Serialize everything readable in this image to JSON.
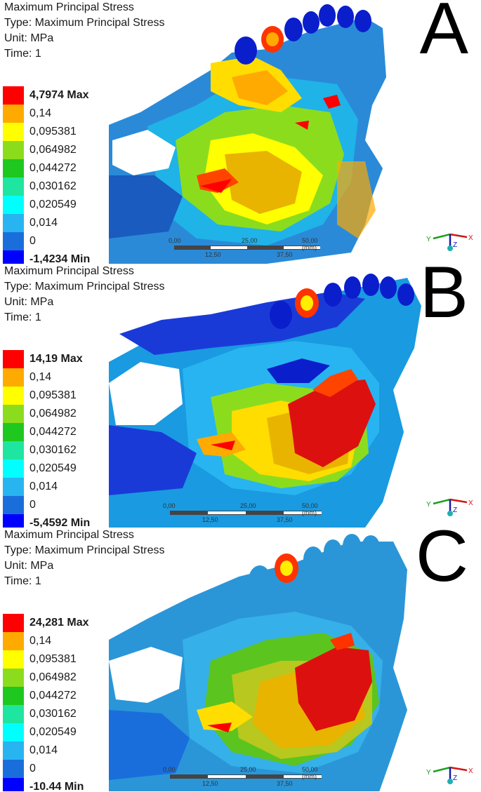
{
  "panels": [
    {
      "letter": "A",
      "title": "Maximum Principal Stress",
      "type_line": "Type: Maximum Principal Stress",
      "unit_line": "Unit: MPa",
      "time_line": "Time: 1",
      "legend": [
        "4,7974 Max",
        "0,14",
        "0,095381",
        "0,064982",
        "0,044272",
        "0,030162",
        "0,020549",
        "0,014",
        "0",
        "-1,4234 Min"
      ]
    },
    {
      "letter": "B",
      "title": "Maximum Principal Stress",
      "type_line": "Type: Maximum Principal Stress",
      "unit_line": "Unit: MPa",
      "time_line": "Time: 1",
      "legend": [
        "14,19 Max",
        "0,14",
        "0,095381",
        "0,064982",
        "0,044272",
        "0,030162",
        "0,020549",
        "0,014",
        "0",
        "-5,4592 Min"
      ]
    },
    {
      "letter": "C",
      "title": "Maximum Principal Stress",
      "type_line": "Type: Maximum Principal Stress",
      "unit_line": "Unit: MPa",
      "time_line": "Time: 1",
      "legend": [
        "24,281 Max",
        "0,14",
        "0,095381",
        "0,064982",
        "0,044272",
        "0,030162",
        "0,020549",
        "0,014",
        "0",
        "-10.44 Min"
      ]
    }
  ],
  "legend_colors": [
    "#ff0000",
    "#ffaa00",
    "#ffff00",
    "#8cdc1e",
    "#1ec81e",
    "#1ee6a0",
    "#00ffff",
    "#28b4f0",
    "#1a6edc",
    "#0000ff"
  ],
  "scale_bar": {
    "start": "0,00",
    "mid": "25,00",
    "end": "50,00 (mm)",
    "q1": "12,50",
    "q3": "37,50"
  },
  "axes": {
    "x": "X",
    "y": "Y",
    "z": "Z"
  }
}
